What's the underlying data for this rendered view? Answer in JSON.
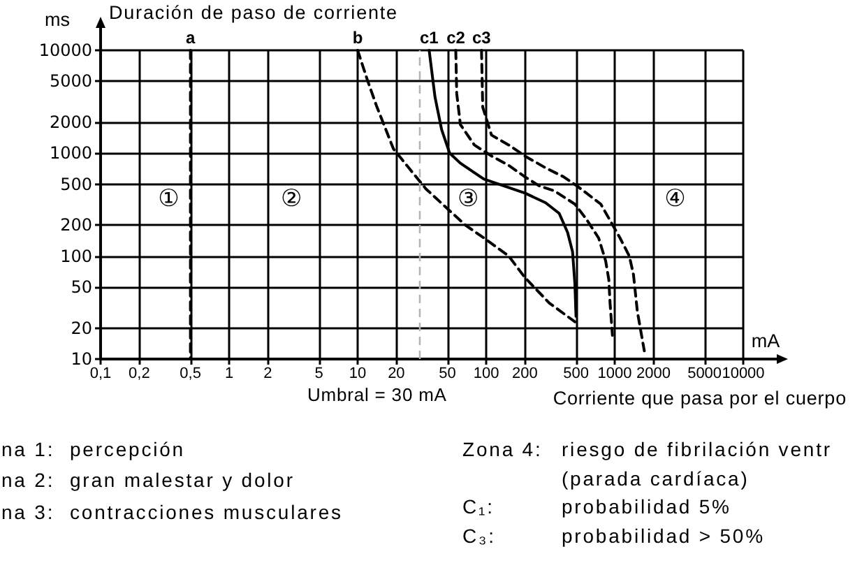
{
  "chart_data": {
    "type": "line",
    "ylabel": "Duración de paso de corriente",
    "xlabel": "Corriente que pasa por el cuerpo",
    "log": "xy",
    "grid": true,
    "marker": "none",
    "xlim": [
      0.1,
      10000
    ],
    "ylim": [
      10,
      10000
    ],
    "xticks": [
      {
        "value": 0.1,
        "label": "0,1"
      },
      {
        "value": 0.2,
        "label": "0,2"
      },
      {
        "value": 0.5,
        "label": "0,5"
      },
      1,
      2,
      5,
      10,
      20,
      50,
      100,
      200,
      500,
      1000,
      2000,
      5000,
      10000
    ],
    "yticks": [
      10,
      20,
      50,
      100,
      200,
      500,
      1000,
      2000,
      5000,
      10000
    ],
    "series": [
      {
        "name": "a",
        "color": "#000000",
        "line_style": "dashed",
        "x": [
          0.5,
          0.5
        ],
        "values": [
          10000,
          10
        ]
      },
      {
        "name": "b",
        "color": "#000000",
        "line_style": "dashed",
        "x": [
          10,
          12,
          14,
          19,
          25,
          34,
          53,
          69,
          96,
          150,
          200,
          310,
          490
        ],
        "values": [
          10000,
          5000,
          2900,
          1100,
          720,
          450,
          270,
          200,
          150,
          100,
          62,
          35,
          23
        ]
      },
      {
        "name": "c1",
        "color": "#000000",
        "line_style": "solid",
        "x": [
          36,
          40,
          45,
          52,
          63,
          96,
          200,
          290,
          370,
          430,
          470,
          490,
          500
        ],
        "values": [
          10000,
          3500,
          1700,
          1000,
          800,
          560,
          410,
          330,
          260,
          170,
          110,
          54,
          26
        ]
      },
      {
        "name": "c2",
        "color": "#000000",
        "line_style": "dashed",
        "x": [
          58,
          59,
          63,
          81,
          110,
          150,
          200,
          260,
          340,
          490,
          600,
          750,
          850,
          900,
          920,
          960
        ],
        "values": [
          10000,
          3800,
          1900,
          1200,
          940,
          760,
          590,
          480,
          430,
          320,
          230,
          150,
          90,
          59,
          35,
          17
        ]
      },
      {
        "name": "c3",
        "color": "#000000",
        "line_style": "dashed",
        "x": [
          92,
          94,
          110,
          150,
          200,
          290,
          400,
          510,
          780,
          1100,
          1300,
          1400,
          1500,
          1700
        ],
        "values": [
          10000,
          2800,
          1500,
          1200,
          940,
          720,
          590,
          480,
          320,
          150,
          100,
          66,
          29,
          12
        ]
      }
    ],
    "ref_lines": [
      {
        "axis": "x",
        "value": 30,
        "label": "Umbral = 30 mA",
        "color": "#b4b4b4",
        "line_style": "dashed"
      }
    ],
    "annotations": [
      "ms",
      "mA",
      "①",
      "②",
      "③",
      "④",
      "na 1: percepción",
      "na 2: gran malestar y dolor",
      "na 3: contracciones musculares",
      "Zona 4: riesgo de fibrilación ventr",
      "(parada cardíaca)",
      "C₁: probabilidad 5%",
      "C₃: probabilidad > 50%"
    ]
  }
}
